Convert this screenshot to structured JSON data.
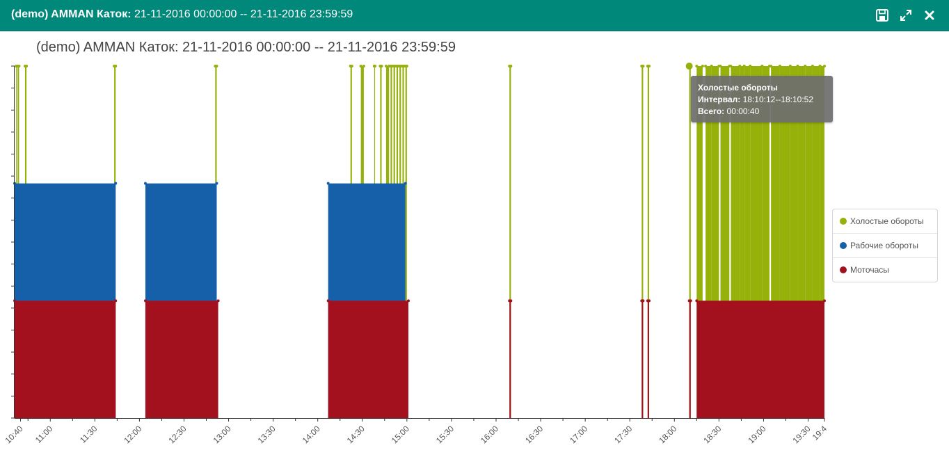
{
  "window": {
    "title_bold": "(demo) AMMAN Каток:",
    "title_rest": " 21-11-2016 00:00:00 -- 21-11-2016 23:59:59",
    "icons": [
      "save-icon",
      "expand-icon",
      "close-icon"
    ]
  },
  "chart_data": {
    "type": "area",
    "title": "(demo) AMMAN Каток: 21-11-2016 00:00:00 -- 21-11-2016 23:59:59",
    "x_range": [
      "10:36",
      "19:41"
    ],
    "x_ticks": [
      "10:40",
      "11:00",
      "11:30",
      "12:00",
      "12:30",
      "13:00",
      "13:30",
      "14:00",
      "14:30",
      "15:00",
      "15:30",
      "16:00",
      "16:30",
      "17:00",
      "17:30",
      "18:00",
      "18:30",
      "19:00",
      "19:30",
      "19:4"
    ],
    "y_tick_labels": false,
    "grid": false,
    "legend_position": "right",
    "series": [
      {
        "name": "Холостые обороты",
        "color": "#95b10a",
        "level": 3,
        "intervals": [
          [
            "10:37",
            "10:37"
          ],
          [
            "10:38",
            "10:39"
          ],
          [
            "10:43",
            "10:44"
          ],
          [
            "11:43",
            "11:44"
          ],
          [
            "12:51",
            "12:52"
          ],
          [
            "14:22",
            "14:23"
          ],
          [
            "14:29",
            "14:31"
          ],
          [
            "14:38",
            "14:38"
          ],
          [
            "14:42",
            "14:43"
          ],
          [
            "14:46",
            "14:48"
          ],
          [
            "14:49",
            "14:50"
          ],
          [
            "14:51",
            "14:52"
          ],
          [
            "14:53",
            "14:54"
          ],
          [
            "14:55",
            "14:56"
          ],
          [
            "14:57",
            "14:58"
          ],
          [
            "14:59",
            "15:00"
          ],
          [
            "16:09",
            "16:10"
          ],
          [
            "17:38",
            "17:39"
          ],
          [
            "17:42",
            "17:43"
          ],
          [
            "18:10",
            "18:11"
          ],
          [
            "18:15",
            "18:19"
          ],
          [
            "18:21",
            "18:25"
          ],
          [
            "18:25",
            "18:30"
          ],
          [
            "18:31",
            "18:37"
          ],
          [
            "18:38",
            "18:44"
          ],
          [
            "18:44",
            "18:47"
          ],
          [
            "18:47",
            "18:51"
          ],
          [
            "18:51",
            "18:59"
          ],
          [
            "18:59",
            "19:04"
          ],
          [
            "19:05",
            "19:11"
          ],
          [
            "19:11",
            "19:18"
          ],
          [
            "19:18",
            "19:23"
          ],
          [
            "19:23",
            "19:28"
          ],
          [
            "19:28",
            "19:33"
          ],
          [
            "19:33",
            "19:38"
          ],
          [
            "19:38",
            "19:41"
          ]
        ]
      },
      {
        "name": "Рабочие обороты",
        "color": "#1560a8",
        "level": 2,
        "intervals": [
          [
            "10:36",
            "11:44"
          ],
          [
            "12:04",
            "12:52"
          ],
          [
            "14:07",
            "14:59"
          ]
        ]
      },
      {
        "name": "Моточасы",
        "color": "#a3111f",
        "level": 1,
        "intervals": [
          [
            "10:36",
            "11:44"
          ],
          [
            "12:04",
            "12:53"
          ],
          [
            "14:07",
            "15:01"
          ],
          [
            "16:09",
            "16:10"
          ],
          [
            "17:38",
            "17:39"
          ],
          [
            "17:42",
            "17:43"
          ],
          [
            "18:10",
            "18:11"
          ],
          [
            "18:15",
            "19:41"
          ]
        ]
      }
    ],
    "tooltip": {
      "series": "Холостые обороты",
      "interval_label": "Интервал:",
      "interval_value": "18:10:12--18:10:52",
      "total_label": "Всего:",
      "total_value": "00:00:40"
    }
  }
}
